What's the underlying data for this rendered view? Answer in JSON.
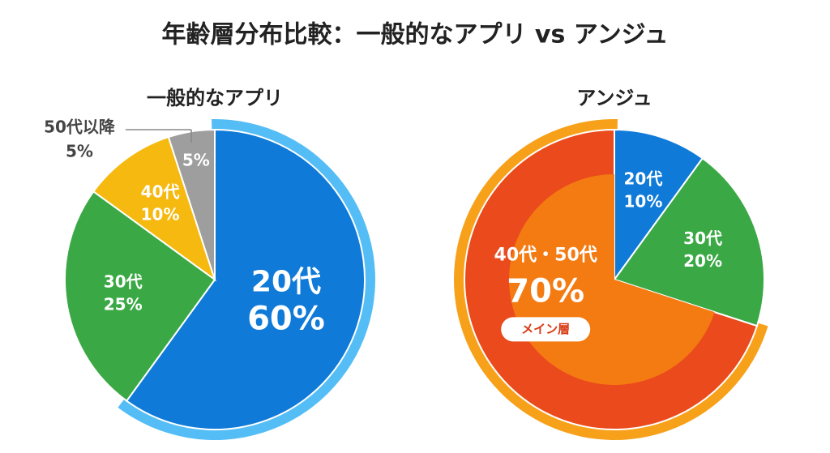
{
  "title": "年齢層分布比較：一般的なアプリ vs アンジュ",
  "chart_data": [
    {
      "type": "pie",
      "title": "一般的なアプリ",
      "categories": [
        "20代",
        "30代",
        "40代",
        "50代以降"
      ],
      "values": [
        60,
        25,
        10,
        5
      ],
      "value_labels": [
        "60%",
        "25%",
        "10%",
        "5%"
      ],
      "colors": [
        "#0f7ad8",
        "#3aa945",
        "#f6b90f",
        "#9e9e9e"
      ],
      "highlight": 0,
      "highlight_color": "#55bdf5"
    },
    {
      "type": "pie",
      "title": "アンジュ",
      "categories": [
        "20代",
        "30代",
        "40代・50代"
      ],
      "values": [
        10,
        20,
        70
      ],
      "value_labels": [
        "10%",
        "20%",
        "70%"
      ],
      "colors": [
        "#0f7ad8",
        "#3aa945",
        "#ea4a1c"
      ],
      "highlight": 2,
      "highlight_color": "#f7a11a",
      "annotation": "メイン層"
    }
  ]
}
